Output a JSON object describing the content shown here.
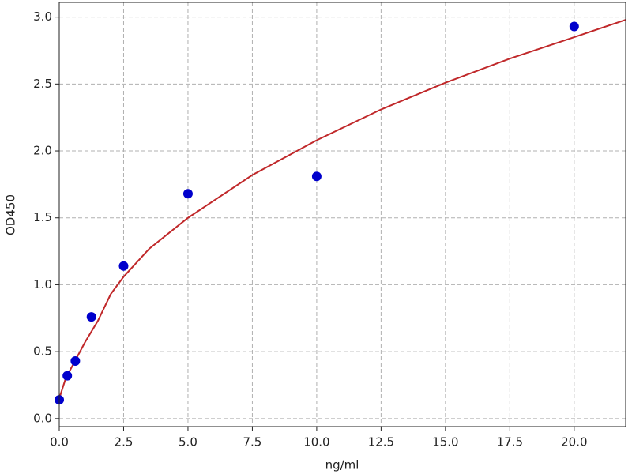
{
  "chart_data": {
    "type": "scatter",
    "xlabel": "ng/ml",
    "ylabel": "OD450",
    "xlim": [
      0,
      22
    ],
    "ylim": [
      -0.06,
      3.11
    ],
    "xticks": [
      {
        "value": 0,
        "label": "0.0"
      },
      {
        "value": 2.5,
        "label": "2.5"
      },
      {
        "value": 5,
        "label": "5.0"
      },
      {
        "value": 7.5,
        "label": "7.5"
      },
      {
        "value": 10,
        "label": "10.0"
      },
      {
        "value": 12.5,
        "label": "12.5"
      },
      {
        "value": 15,
        "label": "15.0"
      },
      {
        "value": 17.5,
        "label": "17.5"
      },
      {
        "value": 20,
        "label": "20.0"
      }
    ],
    "yticks": [
      {
        "value": 0,
        "label": "0.0"
      },
      {
        "value": 0.5,
        "label": "0.5"
      },
      {
        "value": 1,
        "label": "1.0"
      },
      {
        "value": 1.5,
        "label": "1.5"
      },
      {
        "value": 2,
        "label": "2.0"
      },
      {
        "value": 2.5,
        "label": "2.5"
      },
      {
        "value": 3,
        "label": "3.0"
      }
    ],
    "grid": true,
    "series": [
      {
        "type": "scatter",
        "color": "#0000cc",
        "x": [
          0,
          0.3125,
          0.625,
          1.25,
          2.5,
          5,
          10,
          20
        ],
        "values": [
          0.14,
          0.32,
          0.43,
          0.76,
          1.14,
          1.68,
          1.81,
          2.93
        ]
      },
      {
        "type": "line",
        "color": "#c0282a",
        "x": [
          0,
          0.25,
          0.5,
          1,
          1.5,
          2,
          2.5,
          3.5,
          5,
          7.5,
          10,
          12.5,
          15,
          17.5,
          20,
          22
        ],
        "values": [
          0.15,
          0.3,
          0.39,
          0.57,
          0.73,
          0.93,
          1.06,
          1.27,
          1.5,
          1.82,
          2.08,
          2.31,
          2.51,
          2.69,
          2.85,
          2.98
        ]
      }
    ]
  }
}
